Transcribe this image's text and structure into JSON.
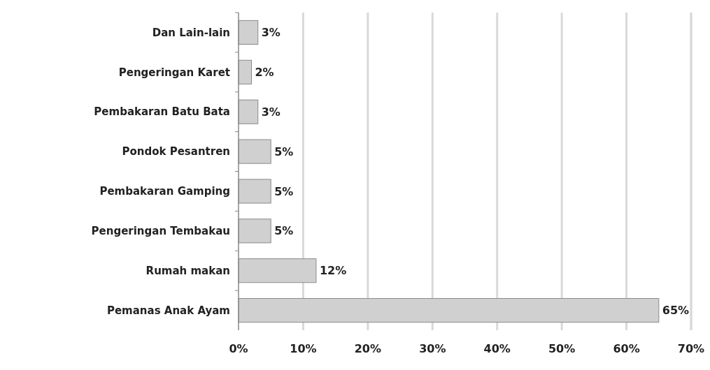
{
  "chart_data": {
    "type": "bar",
    "orientation": "horizontal",
    "categories": [
      "Dan Lain-lain",
      "Pengeringan Karet",
      "Pembakaran Batu Bata",
      "Pondok Pesantren",
      "Pembakaran Gamping",
      "Pengeringan Tembakau",
      "Rumah makan",
      "Pemanas Anak Ayam"
    ],
    "values": [
      3,
      2,
      3,
      5,
      5,
      5,
      12,
      65
    ],
    "value_labels": [
      "3%",
      "2%",
      "3%",
      "5%",
      "5%",
      "5%",
      "12%",
      "65%"
    ],
    "color": "#d0d0d0",
    "xlim": [
      0,
      70
    ],
    "xticks": [
      {
        "value": 0,
        "label": "0%"
      },
      {
        "value": 10,
        "label": "10%"
      },
      {
        "value": 20,
        "label": "20%"
      },
      {
        "value": 30,
        "label": "30%"
      },
      {
        "value": 40,
        "label": "40%"
      },
      {
        "value": 50,
        "label": "50%"
      },
      {
        "value": 60,
        "label": "60%"
      },
      {
        "value": 70,
        "label": "70%"
      }
    ],
    "grid": "x"
  }
}
